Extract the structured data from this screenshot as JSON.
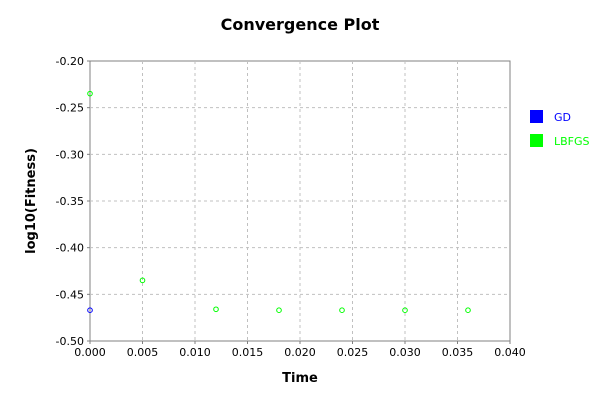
{
  "chart_data": {
    "type": "scatter",
    "title": "Convergence Plot",
    "xlabel": "Time",
    "ylabel": "log10(Fitness)",
    "xlim": [
      0.0,
      0.04
    ],
    "ylim": [
      -0.5,
      -0.2
    ],
    "xticks": [
      "0.000",
      "0.005",
      "0.010",
      "0.015",
      "0.020",
      "0.025",
      "0.030",
      "0.035",
      "0.040"
    ],
    "yticks": [
      "-0.20",
      "-0.25",
      "-0.30",
      "-0.35",
      "-0.40",
      "-0.45",
      "-0.50"
    ],
    "grid": true,
    "legend_position": "right",
    "series": [
      {
        "name": "GD",
        "color": "#0000ff",
        "points": [
          [
            0.0,
            -0.467
          ]
        ]
      },
      {
        "name": "LBFGS",
        "color": "#00ff00",
        "points": [
          [
            0.0,
            -0.235
          ],
          [
            0.005,
            -0.435
          ],
          [
            0.012,
            -0.466
          ],
          [
            0.018,
            -0.467
          ],
          [
            0.024,
            -0.467
          ],
          [
            0.03,
            -0.467
          ],
          [
            0.036,
            -0.467
          ]
        ]
      }
    ]
  }
}
